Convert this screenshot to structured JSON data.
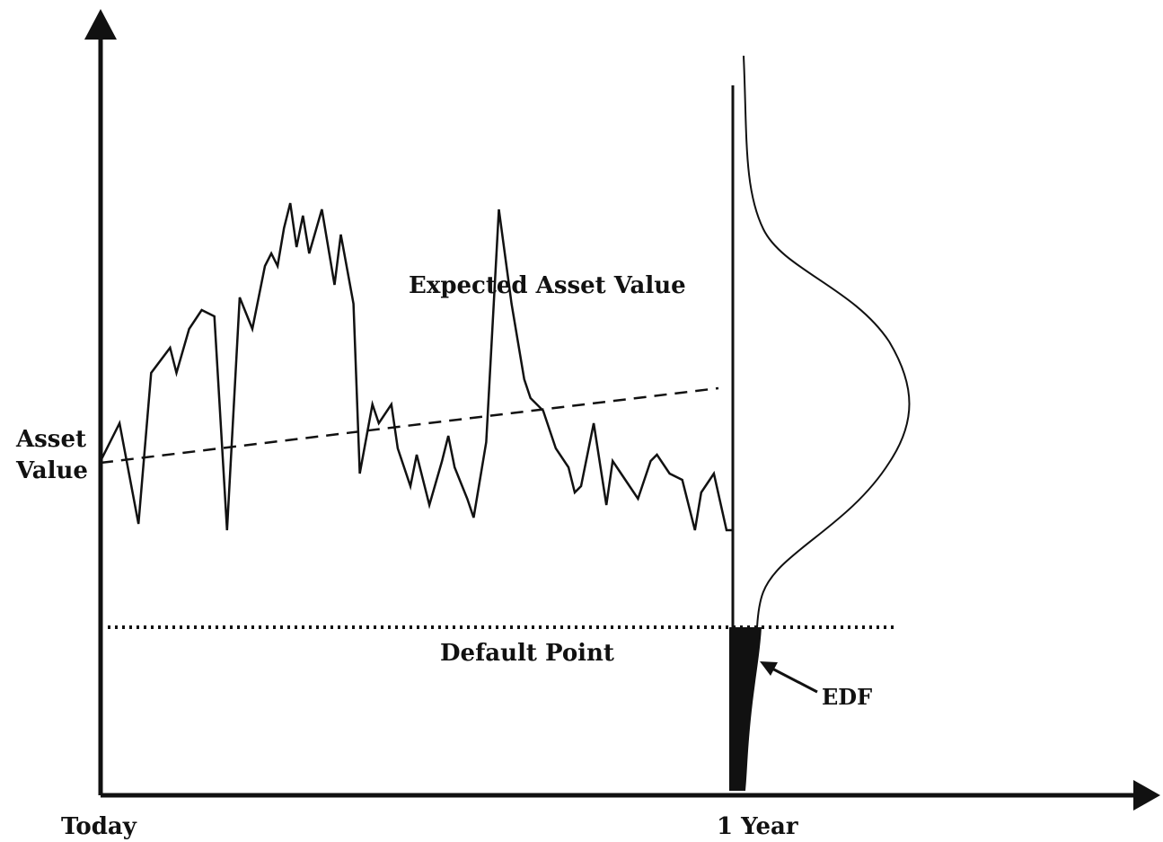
{
  "labels": {
    "y_axis_line1": "Asset",
    "y_axis_line2": "Value",
    "x_start": "Today",
    "x_end": "1 Year",
    "expected": "Expected Asset Value",
    "default_point": "Default Point",
    "edf": "EDF"
  },
  "colors": {
    "ink": "#111111",
    "background": "#ffffff"
  },
  "paths": {
    "asset_path": [
      [
        0,
        0.55
      ],
      [
        0.03,
        0.85
      ],
      [
        0.06,
        0.05
      ],
      [
        0.08,
        1.25
      ],
      [
        0.11,
        1.45
      ],
      [
        0.12,
        1.25
      ],
      [
        0.14,
        1.6
      ],
      [
        0.16,
        1.75
      ],
      [
        0.18,
        1.7
      ],
      [
        0.2,
        0.0
      ],
      [
        0.22,
        1.85
      ],
      [
        0.24,
        1.6
      ],
      [
        0.26,
        2.1
      ],
      [
        0.27,
        2.2
      ],
      [
        0.28,
        2.1
      ],
      [
        0.29,
        2.4
      ],
      [
        0.3,
        2.6
      ],
      [
        0.31,
        2.25
      ],
      [
        0.32,
        2.5
      ],
      [
        0.33,
        2.2
      ],
      [
        0.35,
        2.55
      ],
      [
        0.37,
        1.95
      ],
      [
        0.38,
        2.35
      ],
      [
        0.4,
        1.8
      ],
      [
        0.41,
        0.45
      ],
      [
        0.43,
        1.0
      ],
      [
        0.44,
        0.85
      ],
      [
        0.46,
        1.0
      ],
      [
        0.47,
        0.65
      ],
      [
        0.49,
        0.35
      ],
      [
        0.5,
        0.6
      ],
      [
        0.52,
        0.2
      ],
      [
        0.54,
        0.55
      ],
      [
        0.55,
        0.75
      ],
      [
        0.56,
        0.5
      ],
      [
        0.58,
        0.25
      ],
      [
        0.59,
        0.1
      ],
      [
        0.61,
        0.7
      ],
      [
        0.63,
        2.55
      ],
      [
        0.65,
        1.8
      ],
      [
        0.67,
        1.2
      ],
      [
        0.68,
        1.05
      ],
      [
        0.7,
        0.95
      ],
      [
        0.72,
        0.65
      ],
      [
        0.74,
        0.5
      ],
      [
        0.75,
        0.3
      ],
      [
        0.76,
        0.35
      ],
      [
        0.78,
        0.85
      ],
      [
        0.8,
        0.2
      ],
      [
        0.81,
        0.55
      ],
      [
        0.83,
        0.4
      ],
      [
        0.85,
        0.25
      ],
      [
        0.87,
        0.55
      ],
      [
        0.88,
        0.6
      ],
      [
        0.9,
        0.45
      ],
      [
        0.92,
        0.4
      ],
      [
        0.94,
        0.0
      ],
      [
        0.95,
        0.3
      ],
      [
        0.97,
        0.45
      ],
      [
        0.99,
        0.0
      ],
      [
        1.0,
        0.0
      ]
    ],
    "expected_slope": 0.35
  }
}
